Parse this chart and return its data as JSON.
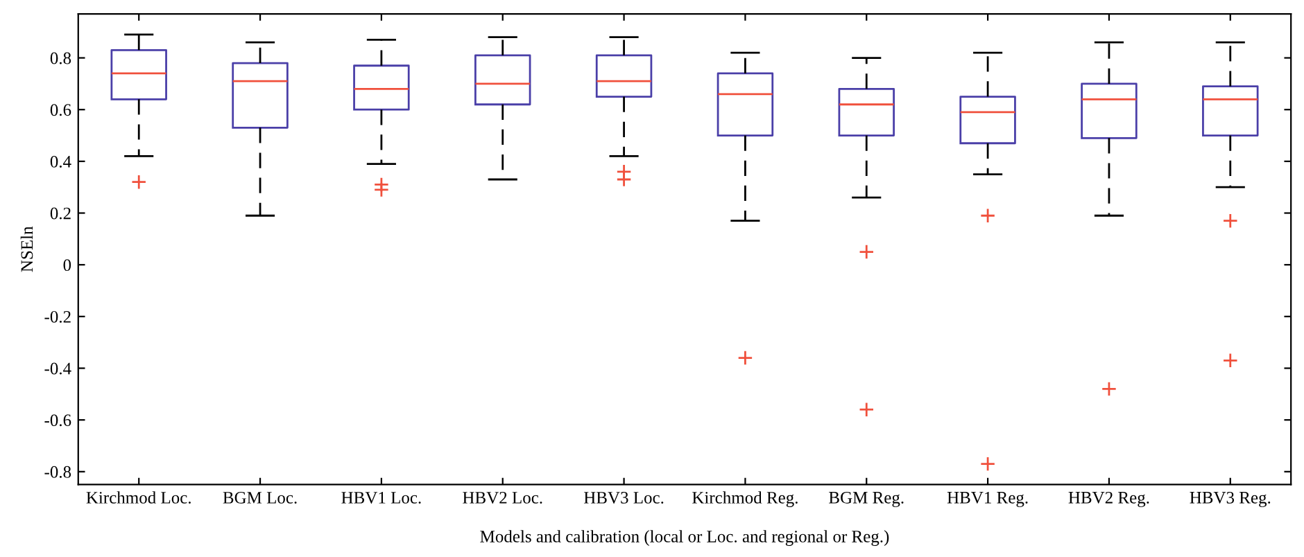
{
  "chart_data": {
    "type": "box",
    "xlabel": "Models and calibration (local or Loc. and regional or Reg.)",
    "ylabel": "NSEln",
    "categories": [
      "Kirchmod Loc.",
      "BGM Loc.",
      "HBV1 Loc.",
      "HBV2 Loc.",
      "HBV3 Loc.",
      "Kirchmod Reg.",
      "BGM Reg.",
      "HBV1 Reg.",
      "HBV2 Reg.",
      "HBV3 Reg."
    ],
    "boxes": [
      {
        "low": 0.42,
        "q1": 0.64,
        "median": 0.74,
        "q3": 0.83,
        "high": 0.89,
        "outliers": [
          0.32
        ]
      },
      {
        "low": 0.19,
        "q1": 0.53,
        "median": 0.71,
        "q3": 0.78,
        "high": 0.86
      },
      {
        "low": 0.39,
        "q1": 0.6,
        "median": 0.68,
        "q3": 0.77,
        "high": 0.87,
        "outliers": [
          0.31,
          0.29
        ]
      },
      {
        "low": 0.33,
        "q1": 0.62,
        "median": 0.7,
        "q3": 0.81,
        "high": 0.88
      },
      {
        "low": 0.42,
        "q1": 0.65,
        "median": 0.71,
        "q3": 0.81,
        "high": 0.88,
        "outliers": [
          0.36,
          0.33
        ]
      },
      {
        "low": 0.17,
        "q1": 0.5,
        "median": 0.66,
        "q3": 0.74,
        "high": 0.82,
        "outliers": [
          -0.36
        ]
      },
      {
        "low": 0.26,
        "q1": 0.5,
        "median": 0.62,
        "q3": 0.68,
        "high": 0.8,
        "outliers": [
          0.05,
          -0.56
        ]
      },
      {
        "low": 0.35,
        "q1": 0.47,
        "median": 0.59,
        "q3": 0.65,
        "high": 0.82,
        "outliers": [
          0.19,
          -0.77
        ]
      },
      {
        "low": 0.19,
        "q1": 0.49,
        "median": 0.64,
        "q3": 0.7,
        "high": 0.86,
        "outliers": [
          -0.48
        ]
      },
      {
        "low": 0.3,
        "q1": 0.5,
        "median": 0.64,
        "q3": 0.69,
        "high": 0.86,
        "outliers": [
          0.17,
          -0.37
        ]
      }
    ],
    "color": "#4a3fa8",
    "ylim": [
      -0.85,
      0.97
    ],
    "yticks": [
      -0.8,
      -0.6,
      -0.4,
      -0.2,
      0,
      0.2,
      0.4,
      0.6,
      0.8
    ],
    "grid": false,
    "legend": false
  }
}
